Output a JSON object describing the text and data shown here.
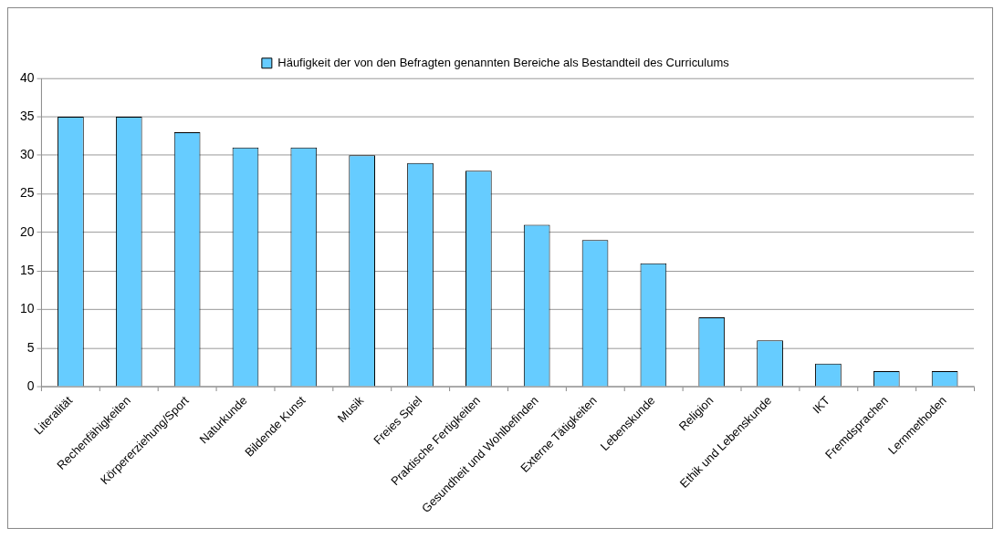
{
  "chart_data": {
    "type": "bar",
    "categories": [
      "Literalität",
      "Rechenfähigkeiten",
      "Körpererziehung/Sport",
      "Naturkunde",
      "Bildende Kunst",
      "Musik",
      "Freies Spiel",
      "Praktische Fertigkeiten",
      "Gesundheit und Wohlbefinden",
      "Externe Tätigkeiten",
      "Lebenskunde",
      "Religion",
      "Ethik und Lebenskunde",
      "IKT",
      "Fremdsprachen",
      "Lernmethoden"
    ],
    "series": [
      {
        "name": "Häufigkeit der von den Befragten genannten Bereiche als Bestandteil des Curriculums",
        "color": "#66ccff",
        "values": [
          35,
          35,
          33,
          31,
          31,
          30,
          29,
          28,
          21,
          19,
          16,
          9,
          6,
          3,
          2,
          2
        ]
      }
    ],
    "ylim": [
      0,
      40
    ],
    "yticks": [
      0,
      5,
      10,
      15,
      20,
      25,
      30,
      35,
      40
    ],
    "grid": "y",
    "legend": "top"
  }
}
